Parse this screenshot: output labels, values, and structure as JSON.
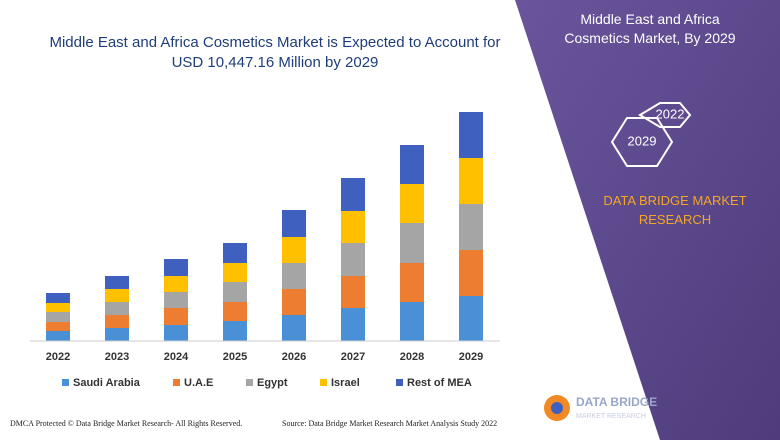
{
  "chart_data": {
    "type": "stacked-bar",
    "title": "Middle East and Africa Cosmetics Market is Expected to Account for USD 10,447.16 Million by 2029",
    "categories": [
      "2022",
      "2023",
      "2024",
      "2025",
      "2026",
      "2027",
      "2028",
      "2029"
    ],
    "series": [
      {
        "name": "Saudi Arabia",
        "color": "#4a90d6",
        "values": [
          10,
          13,
          16,
          20,
          26,
          33,
          39,
          45
        ]
      },
      {
        "name": "U.A.E",
        "color": "#ed7d31",
        "values": [
          9,
          13,
          17,
          19,
          26,
          32,
          39,
          46
        ]
      },
      {
        "name": "Egypt",
        "color": "#a5a5a5",
        "values": [
          10,
          13,
          16,
          20,
          26,
          33,
          40,
          46
        ]
      },
      {
        "name": "Israel",
        "color": "#ffc000",
        "values": [
          9,
          13,
          16,
          19,
          26,
          32,
          39,
          46
        ]
      },
      {
        "name": "Rest of MEA",
        "color": "#3f60bf",
        "values": [
          10,
          13,
          17,
          20,
          27,
          33,
          39,
          46
        ]
      }
    ],
    "ylim": [
      0,
      230
    ]
  },
  "panel": {
    "title": "Middle East and Africa Cosmetics Market, By 2029",
    "hexagons": [
      "2022",
      "2029"
    ],
    "brand": "DATA BRIDGE MARKET RESEARCH"
  },
  "footer": {
    "copyright": "DMCA Protected © Data Bridge Market Research- All Rights Reserved.",
    "source": "Source: Data Bridge Market Research Market Analysis Study 2022",
    "logo": [
      "DATA BRIDGE",
      "MARKET RESEARCH"
    ]
  }
}
